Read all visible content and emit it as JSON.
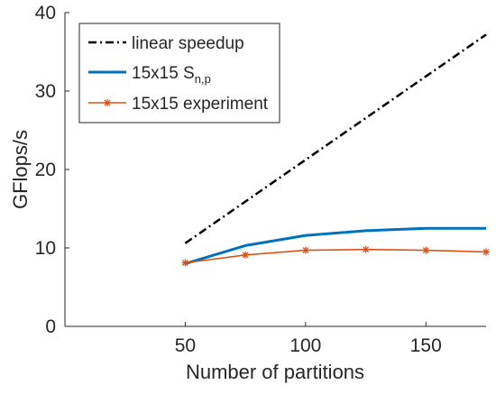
{
  "chart_data": {
    "type": "line",
    "title": "",
    "xlabel": "Number of partitions",
    "ylabel": "GFlops/s",
    "xlim": [
      0,
      175
    ],
    "ylim": [
      0,
      40
    ],
    "xticks": [
      50,
      100,
      150
    ],
    "yticks": [
      0,
      10,
      20,
      30,
      40
    ],
    "grid": false,
    "legend_position": "top-left",
    "series": [
      {
        "name": "linear speedup",
        "style": "dash-dot",
        "color": "#000000",
        "marker": "none",
        "x": [
          50,
          175
        ],
        "y": [
          10.6,
          37.2
        ]
      },
      {
        "name": "15x15 S",
        "name_subscript": "n,p",
        "style": "solid",
        "color": "#0072BD",
        "marker": "none",
        "x": [
          50,
          75,
          100,
          125,
          150,
          175
        ],
        "y": [
          8.0,
          10.3,
          11.6,
          12.2,
          12.5,
          12.5
        ]
      },
      {
        "name": "15x15 experiment",
        "style": "solid",
        "color": "#D95319",
        "marker": "asterisk",
        "x": [
          50,
          75,
          100,
          125,
          150,
          175
        ],
        "y": [
          8.1,
          9.1,
          9.7,
          9.8,
          9.7,
          9.5
        ]
      }
    ]
  }
}
